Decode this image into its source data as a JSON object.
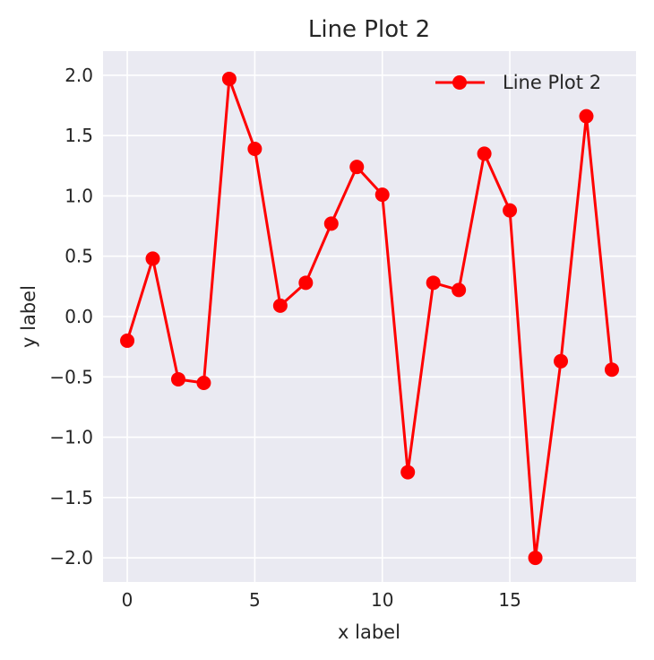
{
  "chart_data": {
    "type": "line",
    "title": "Line Plot 2",
    "xlabel": "x label",
    "ylabel": "y label",
    "xlim": [
      -0.95,
      19.95
    ],
    "ylim": [
      -2.2,
      2.2
    ],
    "x_ticks": [
      0,
      5,
      10,
      15
    ],
    "x_tick_labels": [
      "0",
      "5",
      "10",
      "15"
    ],
    "y_ticks": [
      2.0,
      1.5,
      1.0,
      0.5,
      0.0,
      -0.5,
      -1.0,
      -1.5,
      -2.0
    ],
    "y_tick_labels": [
      "2.0",
      "1.5",
      "1.0",
      "0.5",
      "0.0",
      "−0.5",
      "−1.0",
      "−1.5",
      "−2.0"
    ],
    "grid": true,
    "legend_position": "top-right",
    "series": [
      {
        "name": "Line Plot 2",
        "color": "#ff0000",
        "marker": "circle",
        "x": [
          0,
          1,
          2,
          3,
          4,
          5,
          6,
          7,
          8,
          9,
          10,
          11,
          12,
          13,
          14,
          15,
          16,
          17,
          18,
          19
        ],
        "y": [
          -0.2,
          0.48,
          -0.52,
          -0.55,
          1.97,
          1.39,
          0.09,
          0.28,
          0.77,
          1.24,
          1.01,
          -1.29,
          0.28,
          0.22,
          1.35,
          0.88,
          -2.0,
          -0.37,
          1.66,
          -0.44
        ]
      }
    ]
  },
  "colors": {
    "plot_background": "#eaeaf2",
    "grid": "#ffffff",
    "text": "#262626"
  }
}
